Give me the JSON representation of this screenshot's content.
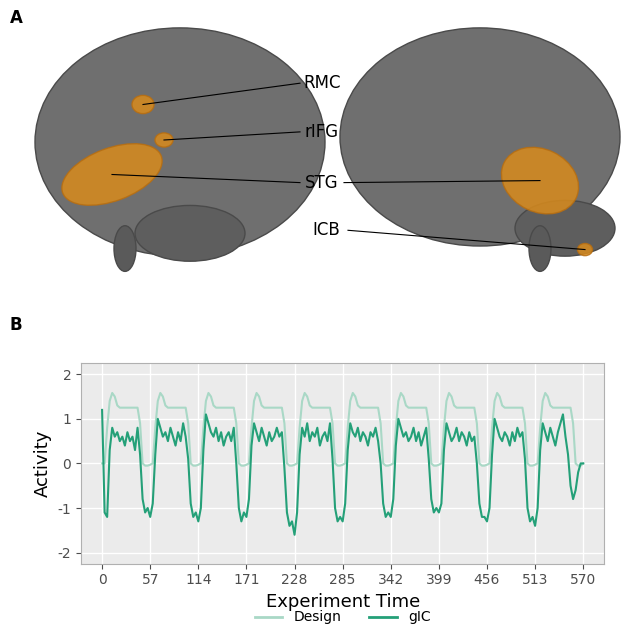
{
  "chart_data": {
    "type": "line",
    "panel_label": "B",
    "x_label": "Experiment Time",
    "y_label": "Activity",
    "x": [
      0,
      3,
      6,
      9,
      12,
      15,
      18,
      21,
      24,
      27,
      30,
      33,
      36,
      39,
      42,
      45,
      48,
      51,
      54,
      57,
      60,
      63,
      66,
      69,
      72,
      75,
      78,
      81,
      84,
      87,
      90,
      93,
      96,
      99,
      102,
      105,
      108,
      111,
      114,
      117,
      120,
      123,
      126,
      129,
      132,
      135,
      138,
      141,
      144,
      147,
      150,
      153,
      156,
      159,
      162,
      165,
      168,
      171,
      174,
      177,
      180,
      183,
      186,
      189,
      192,
      195,
      198,
      201,
      204,
      207,
      210,
      213,
      216,
      219,
      222,
      225,
      228,
      231,
      234,
      237,
      240,
      243,
      246,
      249,
      252,
      255,
      258,
      261,
      264,
      267,
      270,
      273,
      276,
      279,
      282,
      285,
      288,
      291,
      294,
      297,
      300,
      303,
      306,
      309,
      312,
      315,
      318,
      321,
      324,
      327,
      330,
      333,
      336,
      339,
      342,
      345,
      348,
      351,
      354,
      357,
      360,
      363,
      366,
      369,
      372,
      375,
      378,
      381,
      384,
      387,
      390,
      393,
      396,
      399,
      402,
      405,
      408,
      411,
      414,
      417,
      420,
      423,
      426,
      429,
      432,
      435,
      438,
      441,
      444,
      447,
      450,
      453,
      456,
      459,
      462,
      465,
      468,
      471,
      474,
      477,
      480,
      483,
      486,
      489,
      492,
      495,
      498,
      501,
      504,
      507,
      510,
      513,
      516,
      519,
      522,
      525,
      528,
      531,
      534,
      537,
      540,
      543,
      546,
      549,
      552,
      555,
      558,
      561,
      564,
      567,
      570
    ],
    "series": [
      {
        "name": "Design",
        "color": "#a9d8c6",
        "values": [
          0.0,
          0.0,
          0.8,
          1.4,
          1.58,
          1.5,
          1.3,
          1.25,
          1.25,
          1.25,
          1.25,
          1.25,
          1.25,
          1.25,
          1.25,
          0.9,
          0.0,
          -0.05,
          -0.05,
          -0.03,
          0.0,
          0.8,
          1.4,
          1.58,
          1.5,
          1.3,
          1.25,
          1.25,
          1.25,
          1.25,
          1.25,
          1.25,
          1.25,
          1.25,
          0.9,
          0.0,
          -0.05,
          -0.05,
          -0.03,
          0.0,
          0.8,
          1.4,
          1.58,
          1.5,
          1.3,
          1.25,
          1.25,
          1.25,
          1.25,
          1.25,
          1.25,
          1.25,
          1.25,
          0.9,
          0.0,
          -0.05,
          -0.05,
          -0.03,
          0.0,
          0.8,
          1.4,
          1.58,
          1.5,
          1.3,
          1.25,
          1.25,
          1.25,
          1.25,
          1.25,
          1.25,
          1.25,
          1.25,
          0.9,
          0.0,
          -0.05,
          -0.05,
          -0.03,
          0.0,
          0.8,
          1.4,
          1.58,
          1.5,
          1.3,
          1.25,
          1.25,
          1.25,
          1.25,
          1.25,
          1.25,
          1.25,
          1.25,
          0.9,
          0.0,
          -0.05,
          -0.05,
          -0.03,
          0.0,
          0.8,
          1.4,
          1.58,
          1.5,
          1.3,
          1.25,
          1.25,
          1.25,
          1.25,
          1.25,
          1.25,
          1.25,
          1.25,
          0.9,
          0.0,
          -0.05,
          -0.05,
          -0.03,
          0.0,
          0.8,
          1.4,
          1.58,
          1.5,
          1.3,
          1.25,
          1.25,
          1.25,
          1.25,
          1.25,
          1.25,
          1.25,
          1.25,
          0.9,
          0.0,
          -0.05,
          -0.05,
          -0.03,
          0.0,
          0.8,
          1.4,
          1.58,
          1.5,
          1.3,
          1.25,
          1.25,
          1.25,
          1.25,
          1.25,
          1.25,
          1.25,
          1.25,
          0.9,
          0.0,
          -0.05,
          -0.05,
          -0.03,
          0.0,
          0.8,
          1.4,
          1.58,
          1.5,
          1.3,
          1.25,
          1.25,
          1.25,
          1.25,
          1.25,
          1.25,
          1.25,
          1.25,
          0.9,
          0.0,
          -0.05,
          -0.05,
          -0.03,
          0.0,
          0.8,
          1.4,
          1.58,
          1.5,
          1.3,
          1.25,
          1.25,
          1.25,
          1.25,
          1.25,
          1.25,
          1.25,
          1.25,
          0.9,
          0.0,
          -0.05,
          -0.05,
          0.0
        ]
      },
      {
        "name": "gIC",
        "color": "#24a078",
        "values": [
          1.2,
          -1.1,
          -1.2,
          0.3,
          0.8,
          0.6,
          0.7,
          0.5,
          0.6,
          0.4,
          0.7,
          0.5,
          0.6,
          0.3,
          0.8,
          0.2,
          -0.8,
          -1.1,
          -1.0,
          -1.2,
          -0.9,
          0.2,
          1.0,
          0.8,
          0.6,
          0.7,
          0.5,
          0.8,
          0.6,
          0.4,
          0.7,
          0.5,
          0.9,
          0.6,
          0.1,
          -0.9,
          -1.2,
          -1.1,
          -1.3,
          -1.0,
          0.3,
          1.1,
          0.9,
          0.7,
          0.6,
          0.8,
          0.5,
          0.7,
          0.4,
          0.6,
          0.7,
          0.5,
          0.8,
          0.0,
          -1.0,
          -1.3,
          -1.1,
          -1.2,
          -0.8,
          0.4,
          0.9,
          0.7,
          0.5,
          0.8,
          0.6,
          0.4,
          0.7,
          0.5,
          0.6,
          0.8,
          0.6,
          0.7,
          -0.1,
          -1.1,
          -1.4,
          -1.3,
          -1.6,
          -1.1,
          0.2,
          0.8,
          0.6,
          0.9,
          0.5,
          0.7,
          0.6,
          0.8,
          0.4,
          0.6,
          0.7,
          0.5,
          0.9,
          0.1,
          -1.0,
          -1.3,
          -1.2,
          -1.3,
          -0.9,
          0.3,
          0.9,
          0.7,
          0.6,
          0.8,
          0.5,
          0.7,
          0.6,
          0.4,
          0.7,
          0.6,
          0.8,
          0.5,
          0.0,
          -0.9,
          -1.2,
          -1.1,
          -1.2,
          -0.8,
          0.4,
          1.0,
          0.8,
          0.6,
          0.7,
          0.5,
          0.6,
          0.8,
          0.5,
          0.7,
          0.4,
          0.6,
          0.8,
          0.1,
          -0.8,
          -1.1,
          -1.0,
          -1.1,
          -0.9,
          0.3,
          0.9,
          0.7,
          0.5,
          0.6,
          0.8,
          0.5,
          0.7,
          0.6,
          0.4,
          0.7,
          0.5,
          0.6,
          0.0,
          -0.9,
          -1.2,
          -1.2,
          -1.3,
          -1.0,
          0.2,
          1.0,
          0.8,
          0.6,
          0.5,
          0.7,
          0.6,
          0.4,
          0.7,
          0.5,
          0.8,
          0.6,
          0.7,
          0.1,
          -1.0,
          -1.3,
          -1.2,
          -1.4,
          -1.0,
          0.3,
          0.9,
          0.7,
          0.5,
          0.8,
          0.6,
          0.4,
          0.7,
          0.9,
          1.1,
          0.6,
          0.2,
          -0.5,
          -0.8,
          -0.6,
          -0.2,
          0.0,
          0.0
        ]
      }
    ],
    "xlim": [
      -25,
      595
    ],
    "xticks": [
      0,
      57,
      114,
      171,
      228,
      285,
      342,
      399,
      456,
      513,
      570
    ],
    "ylim": [
      -2.25,
      2.25
    ],
    "yticks": [
      -2,
      -1,
      0,
      1,
      2
    ],
    "grid": true,
    "legend": "bottom"
  },
  "diagram": {
    "panel_label": "A",
    "region_labels": [
      "RMC",
      "rIFG",
      "STG",
      "ICB"
    ]
  }
}
